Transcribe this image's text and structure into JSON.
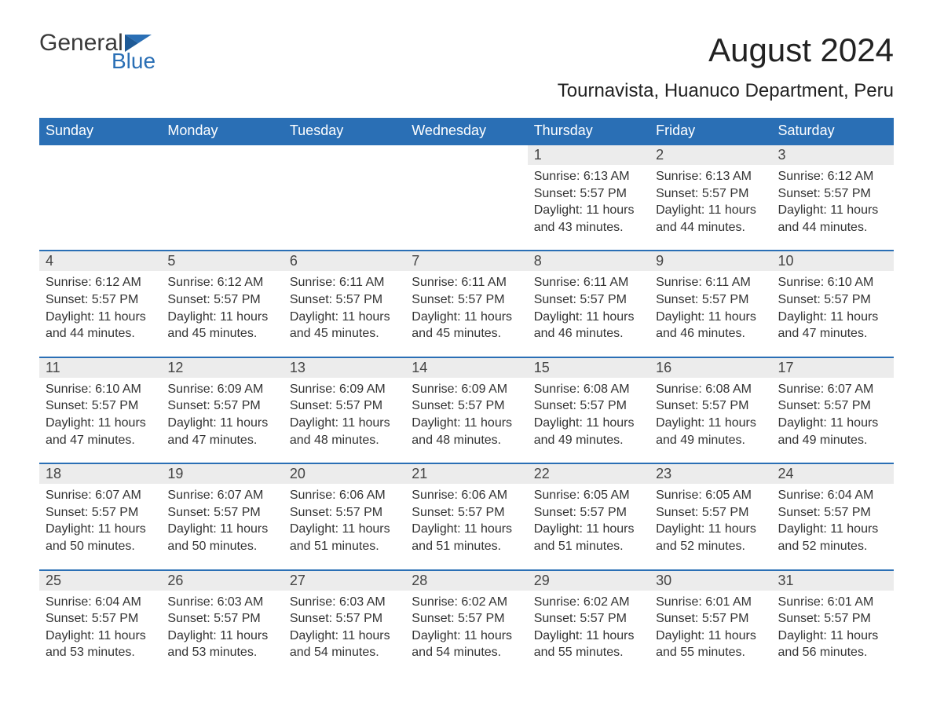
{
  "logo": {
    "word1": "General",
    "word2": "Blue",
    "accent_color": "#2a6fb5"
  },
  "title": "August 2024",
  "location": "Tournavista, Huanuco Department, Peru",
  "calendar": {
    "header_bg": "#2a6fb5",
    "header_fg": "#ffffff",
    "daynum_bg": "#ececec",
    "rule_color": "#2a6fb5",
    "weekdays": [
      "Sunday",
      "Monday",
      "Tuesday",
      "Wednesday",
      "Thursday",
      "Friday",
      "Saturday"
    ],
    "weeks": [
      [
        null,
        null,
        null,
        null,
        {
          "day": "1",
          "sunrise": "Sunrise: 6:13 AM",
          "sunset": "Sunset: 5:57 PM",
          "daylight1": "Daylight: 11 hours",
          "daylight2": "and 43 minutes."
        },
        {
          "day": "2",
          "sunrise": "Sunrise: 6:13 AM",
          "sunset": "Sunset: 5:57 PM",
          "daylight1": "Daylight: 11 hours",
          "daylight2": "and 44 minutes."
        },
        {
          "day": "3",
          "sunrise": "Sunrise: 6:12 AM",
          "sunset": "Sunset: 5:57 PM",
          "daylight1": "Daylight: 11 hours",
          "daylight2": "and 44 minutes."
        }
      ],
      [
        {
          "day": "4",
          "sunrise": "Sunrise: 6:12 AM",
          "sunset": "Sunset: 5:57 PM",
          "daylight1": "Daylight: 11 hours",
          "daylight2": "and 44 minutes."
        },
        {
          "day": "5",
          "sunrise": "Sunrise: 6:12 AM",
          "sunset": "Sunset: 5:57 PM",
          "daylight1": "Daylight: 11 hours",
          "daylight2": "and 45 minutes."
        },
        {
          "day": "6",
          "sunrise": "Sunrise: 6:11 AM",
          "sunset": "Sunset: 5:57 PM",
          "daylight1": "Daylight: 11 hours",
          "daylight2": "and 45 minutes."
        },
        {
          "day": "7",
          "sunrise": "Sunrise: 6:11 AM",
          "sunset": "Sunset: 5:57 PM",
          "daylight1": "Daylight: 11 hours",
          "daylight2": "and 45 minutes."
        },
        {
          "day": "8",
          "sunrise": "Sunrise: 6:11 AM",
          "sunset": "Sunset: 5:57 PM",
          "daylight1": "Daylight: 11 hours",
          "daylight2": "and 46 minutes."
        },
        {
          "day": "9",
          "sunrise": "Sunrise: 6:11 AM",
          "sunset": "Sunset: 5:57 PM",
          "daylight1": "Daylight: 11 hours",
          "daylight2": "and 46 minutes."
        },
        {
          "day": "10",
          "sunrise": "Sunrise: 6:10 AM",
          "sunset": "Sunset: 5:57 PM",
          "daylight1": "Daylight: 11 hours",
          "daylight2": "and 47 minutes."
        }
      ],
      [
        {
          "day": "11",
          "sunrise": "Sunrise: 6:10 AM",
          "sunset": "Sunset: 5:57 PM",
          "daylight1": "Daylight: 11 hours",
          "daylight2": "and 47 minutes."
        },
        {
          "day": "12",
          "sunrise": "Sunrise: 6:09 AM",
          "sunset": "Sunset: 5:57 PM",
          "daylight1": "Daylight: 11 hours",
          "daylight2": "and 47 minutes."
        },
        {
          "day": "13",
          "sunrise": "Sunrise: 6:09 AM",
          "sunset": "Sunset: 5:57 PM",
          "daylight1": "Daylight: 11 hours",
          "daylight2": "and 48 minutes."
        },
        {
          "day": "14",
          "sunrise": "Sunrise: 6:09 AM",
          "sunset": "Sunset: 5:57 PM",
          "daylight1": "Daylight: 11 hours",
          "daylight2": "and 48 minutes."
        },
        {
          "day": "15",
          "sunrise": "Sunrise: 6:08 AM",
          "sunset": "Sunset: 5:57 PM",
          "daylight1": "Daylight: 11 hours",
          "daylight2": "and 49 minutes."
        },
        {
          "day": "16",
          "sunrise": "Sunrise: 6:08 AM",
          "sunset": "Sunset: 5:57 PM",
          "daylight1": "Daylight: 11 hours",
          "daylight2": "and 49 minutes."
        },
        {
          "day": "17",
          "sunrise": "Sunrise: 6:07 AM",
          "sunset": "Sunset: 5:57 PM",
          "daylight1": "Daylight: 11 hours",
          "daylight2": "and 49 minutes."
        }
      ],
      [
        {
          "day": "18",
          "sunrise": "Sunrise: 6:07 AM",
          "sunset": "Sunset: 5:57 PM",
          "daylight1": "Daylight: 11 hours",
          "daylight2": "and 50 minutes."
        },
        {
          "day": "19",
          "sunrise": "Sunrise: 6:07 AM",
          "sunset": "Sunset: 5:57 PM",
          "daylight1": "Daylight: 11 hours",
          "daylight2": "and 50 minutes."
        },
        {
          "day": "20",
          "sunrise": "Sunrise: 6:06 AM",
          "sunset": "Sunset: 5:57 PM",
          "daylight1": "Daylight: 11 hours",
          "daylight2": "and 51 minutes."
        },
        {
          "day": "21",
          "sunrise": "Sunrise: 6:06 AM",
          "sunset": "Sunset: 5:57 PM",
          "daylight1": "Daylight: 11 hours",
          "daylight2": "and 51 minutes."
        },
        {
          "day": "22",
          "sunrise": "Sunrise: 6:05 AM",
          "sunset": "Sunset: 5:57 PM",
          "daylight1": "Daylight: 11 hours",
          "daylight2": "and 51 minutes."
        },
        {
          "day": "23",
          "sunrise": "Sunrise: 6:05 AM",
          "sunset": "Sunset: 5:57 PM",
          "daylight1": "Daylight: 11 hours",
          "daylight2": "and 52 minutes."
        },
        {
          "day": "24",
          "sunrise": "Sunrise: 6:04 AM",
          "sunset": "Sunset: 5:57 PM",
          "daylight1": "Daylight: 11 hours",
          "daylight2": "and 52 minutes."
        }
      ],
      [
        {
          "day": "25",
          "sunrise": "Sunrise: 6:04 AM",
          "sunset": "Sunset: 5:57 PM",
          "daylight1": "Daylight: 11 hours",
          "daylight2": "and 53 minutes."
        },
        {
          "day": "26",
          "sunrise": "Sunrise: 6:03 AM",
          "sunset": "Sunset: 5:57 PM",
          "daylight1": "Daylight: 11 hours",
          "daylight2": "and 53 minutes."
        },
        {
          "day": "27",
          "sunrise": "Sunrise: 6:03 AM",
          "sunset": "Sunset: 5:57 PM",
          "daylight1": "Daylight: 11 hours",
          "daylight2": "and 54 minutes."
        },
        {
          "day": "28",
          "sunrise": "Sunrise: 6:02 AM",
          "sunset": "Sunset: 5:57 PM",
          "daylight1": "Daylight: 11 hours",
          "daylight2": "and 54 minutes."
        },
        {
          "day": "29",
          "sunrise": "Sunrise: 6:02 AM",
          "sunset": "Sunset: 5:57 PM",
          "daylight1": "Daylight: 11 hours",
          "daylight2": "and 55 minutes."
        },
        {
          "day": "30",
          "sunrise": "Sunrise: 6:01 AM",
          "sunset": "Sunset: 5:57 PM",
          "daylight1": "Daylight: 11 hours",
          "daylight2": "and 55 minutes."
        },
        {
          "day": "31",
          "sunrise": "Sunrise: 6:01 AM",
          "sunset": "Sunset: 5:57 PM",
          "daylight1": "Daylight: 11 hours",
          "daylight2": "and 56 minutes."
        }
      ]
    ]
  }
}
